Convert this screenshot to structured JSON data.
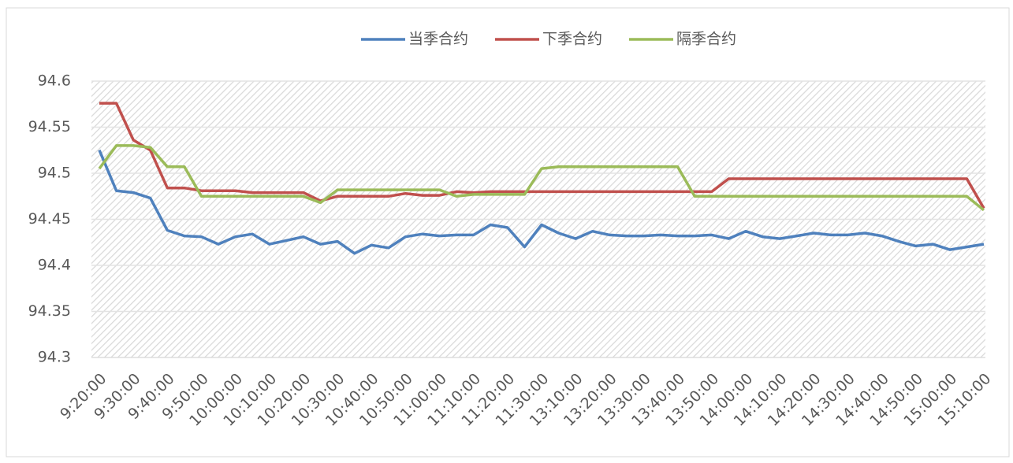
{
  "chart_data": {
    "type": "line",
    "categories": [
      "9:20:00",
      null,
      "9:30:00",
      null,
      "9:40:00",
      null,
      "9:50:00",
      null,
      "10:00:00",
      null,
      "10:10:00",
      null,
      "10:20:00",
      null,
      "10:30:00",
      null,
      "10:40:00",
      null,
      "10:50:00",
      null,
      "11:00:00",
      null,
      "11:10:00",
      null,
      "11:20:00",
      null,
      "11:30:00",
      null,
      "13:10:00",
      null,
      "13:20:00",
      null,
      "13:30:00",
      null,
      "13:40:00",
      null,
      "13:50:00",
      null,
      "14:00:00",
      null,
      "14:10:00",
      null,
      "14:20:00",
      null,
      "14:30:00",
      null,
      "14:40:00",
      null,
      "14:50:00",
      null,
      "15:00:00",
      null,
      "15:10:00"
    ],
    "series": [
      {
        "name": "当季合约",
        "color": "#4f81bd",
        "values": [
          94.525,
          94.481,
          94.479,
          94.473,
          94.438,
          94.432,
          94.431,
          94.423,
          94.431,
          94.434,
          94.423,
          94.427,
          94.431,
          94.423,
          94.426,
          94.413,
          94.422,
          94.419,
          94.431,
          94.434,
          94.432,
          94.433,
          94.433,
          94.444,
          94.441,
          94.42,
          94.444,
          94.435,
          94.429,
          94.437,
          94.433,
          94.432,
          94.432,
          94.433,
          94.432,
          94.432,
          94.433,
          94.429,
          94.437,
          94.431,
          94.429,
          94.432,
          94.435,
          94.433,
          94.433,
          94.435,
          94.432,
          94.426,
          94.421,
          94.423,
          94.417,
          94.42,
          94.423
        ]
      },
      {
        "name": "下季合约",
        "color": "#c0504d",
        "values": [
          94.576,
          94.576,
          94.536,
          94.525,
          94.484,
          94.484,
          94.481,
          94.481,
          94.481,
          94.479,
          94.479,
          94.479,
          94.479,
          94.47,
          94.475,
          94.475,
          94.475,
          94.475,
          94.478,
          94.476,
          94.476,
          94.48,
          94.479,
          94.48,
          94.48,
          94.48,
          94.48,
          94.48,
          94.48,
          94.48,
          94.48,
          94.48,
          94.48,
          94.48,
          94.48,
          94.48,
          94.48,
          94.494,
          94.494,
          94.494,
          94.494,
          94.494,
          94.494,
          94.494,
          94.494,
          94.494,
          94.494,
          94.494,
          94.494,
          94.494,
          94.494,
          94.494,
          94.462
        ]
      },
      {
        "name": "隔季合约",
        "color": "#9bbb59",
        "values": [
          94.505,
          94.53,
          94.53,
          94.528,
          94.507,
          94.507,
          94.475,
          94.475,
          94.475,
          94.475,
          94.475,
          94.475,
          94.475,
          94.468,
          94.482,
          94.482,
          94.482,
          94.482,
          94.482,
          94.482,
          94.482,
          94.475,
          94.477,
          94.477,
          94.477,
          94.477,
          94.505,
          94.507,
          94.507,
          94.507,
          94.507,
          94.507,
          94.507,
          94.507,
          94.507,
          94.475,
          94.475,
          94.475,
          94.475,
          94.475,
          94.475,
          94.475,
          94.475,
          94.475,
          94.475,
          94.475,
          94.475,
          94.475,
          94.475,
          94.475,
          94.475,
          94.475,
          94.46
        ]
      }
    ],
    "ylim": [
      94.3,
      94.6
    ],
    "yticks": [
      94.3,
      94.35,
      94.4,
      94.45,
      94.5,
      94.55,
      94.6
    ],
    "grid": true,
    "legend": "top"
  }
}
